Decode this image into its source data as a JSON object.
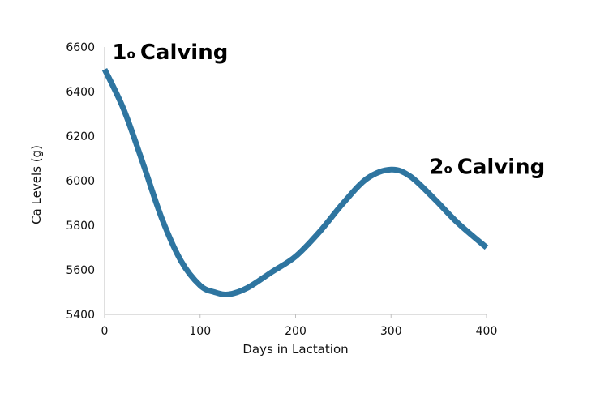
{
  "chart_data": {
    "type": "line",
    "xlabel": "Days in Lactation",
    "ylabel": "Ca Levels (g)",
    "xlim": [
      0,
      400
    ],
    "ylim": [
      5400,
      6600
    ],
    "x_ticks": [
      0,
      100,
      200,
      300,
      400
    ],
    "y_ticks": [
      5400,
      5600,
      5800,
      6000,
      6200,
      6400,
      6600
    ],
    "grid": false,
    "series": [
      {
        "color": "#2e75a0",
        "points": [
          {
            "x": 0,
            "y": 6500
          },
          {
            "x": 20,
            "y": 6320
          },
          {
            "x": 40,
            "y": 6080
          },
          {
            "x": 60,
            "y": 5830
          },
          {
            "x": 80,
            "y": 5640
          },
          {
            "x": 100,
            "y": 5530
          },
          {
            "x": 115,
            "y": 5500
          },
          {
            "x": 130,
            "y": 5490
          },
          {
            "x": 150,
            "y": 5520
          },
          {
            "x": 175,
            "y": 5590
          },
          {
            "x": 200,
            "y": 5660
          },
          {
            "x": 225,
            "y": 5770
          },
          {
            "x": 250,
            "y": 5900
          },
          {
            "x": 275,
            "y": 6010
          },
          {
            "x": 300,
            "y": 6050
          },
          {
            "x": 320,
            "y": 6020
          },
          {
            "x": 345,
            "y": 5920
          },
          {
            "x": 370,
            "y": 5810
          },
          {
            "x": 400,
            "y": 5700
          }
        ]
      }
    ],
    "annotations": [
      {
        "number": "1",
        "superscript": "o",
        "text": "Calving",
        "at": {
          "x": 8,
          "y": 6590
        }
      },
      {
        "number": "2",
        "superscript": "o",
        "text": "Calving",
        "at": {
          "x": 340,
          "y": 6075
        }
      }
    ]
  }
}
